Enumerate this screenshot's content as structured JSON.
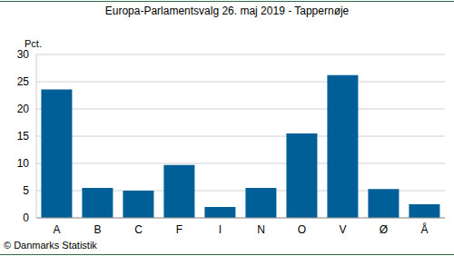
{
  "chart_data": {
    "type": "bar",
    "title": "Europa-Parlamentsvalg 26. maj 2019 - Tappernøje",
    "y_label": "Pct.",
    "source": "© Danmarks Statistik",
    "categories": [
      "A",
      "B",
      "C",
      "F",
      "I",
      "N",
      "O",
      "V",
      "Ø",
      "Å"
    ],
    "values": [
      23.6,
      5.5,
      5.0,
      9.7,
      2.0,
      5.5,
      15.5,
      26.2,
      5.3,
      2.5
    ],
    "color": "#005f96",
    "ylim": [
      0,
      30
    ],
    "yticks": [
      0,
      5,
      10,
      15,
      20,
      25,
      30
    ],
    "grid": true
  }
}
